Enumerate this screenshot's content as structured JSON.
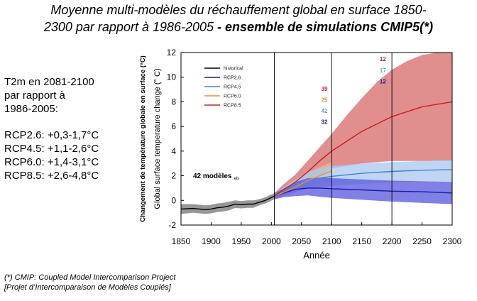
{
  "slide": {
    "title_line1": "Moyenne multi-modèles du réchauffement global en surface 1850-",
    "title_line2_plain": "2300 par rapport à 1986-2005",
    "title_line2_bold": " - ensemble de simulations CMIP5(*)"
  },
  "summary": {
    "heading_lines": [
      "T2m en 2081-2100",
      "par rapport à",
      "1986-2005:"
    ],
    "items": [
      "RCP2.6: +0,3-1,7°C",
      "RCP4.5: +1,1-2,6°C",
      "RCP6.0: +1,4-3,1°C",
      "RCP8.5: +2,6-4,8°C"
    ]
  },
  "footnote": {
    "line1": "(*) CMIP: Coupled Model Intercomparison Project",
    "line2": "[Projet d’Intercomparaison de Modèles Couplés]"
  },
  "chart_data": {
    "type": "line",
    "ylabel_fr": "Changement de température globale en surface (°C)",
    "ylabel_en": "Global surface temperature change (° C)",
    "xlabel": "Année",
    "xlim": [
      1850,
      2300
    ],
    "ylim": [
      -2,
      12
    ],
    "xticks": [
      1850,
      1900,
      1950,
      2000,
      2050,
      2100,
      2150,
      2200,
      2250,
      2300
    ],
    "yticks": [
      -2,
      0,
      2,
      4,
      6,
      8,
      10,
      12
    ],
    "vertical_lines": [
      2005,
      2100,
      2200
    ],
    "grid": false,
    "legend_position": "top-left",
    "models_label_main": "42 modèles",
    "models_label_suffix": "els",
    "series": [
      {
        "name": "historical",
        "color": "#000000",
        "band_color": "#8c8c8c",
        "x": [
          1850,
          1870,
          1880,
          1890,
          1900,
          1910,
          1920,
          1930,
          1940,
          1950,
          1960,
          1970,
          1980,
          1990,
          2005
        ],
        "y": [
          -0.7,
          -0.65,
          -0.7,
          -0.75,
          -0.7,
          -0.6,
          -0.55,
          -0.45,
          -0.3,
          -0.35,
          -0.3,
          -0.3,
          -0.15,
          0.0,
          0.35
        ],
        "y_low": [
          -1.1,
          -1.0,
          -1.05,
          -1.1,
          -1.05,
          -0.95,
          -0.9,
          -0.8,
          -0.6,
          -0.65,
          -0.6,
          -0.6,
          -0.4,
          -0.25,
          0.1
        ],
        "y_high": [
          -0.3,
          -0.3,
          -0.35,
          -0.4,
          -0.35,
          -0.25,
          -0.2,
          -0.1,
          0.0,
          -0.05,
          0.0,
          0.0,
          0.1,
          0.25,
          0.6
        ]
      },
      {
        "name": "RCP2.6",
        "color": "#1a1aa8",
        "band_color": "#5555dd",
        "x": [
          2005,
          2020,
          2040,
          2060,
          2080,
          2100,
          2150,
          2200,
          2250,
          2300
        ],
        "y": [
          0.35,
          0.6,
          0.9,
          1.0,
          1.0,
          0.95,
          0.85,
          0.75,
          0.7,
          0.6
        ],
        "y_low": [
          0.1,
          0.25,
          0.35,
          0.4,
          0.3,
          0.2,
          0.05,
          -0.1,
          -0.2,
          -0.3
        ],
        "y_high": [
          0.6,
          0.95,
          1.5,
          1.8,
          1.85,
          1.8,
          1.7,
          1.6,
          1.55,
          1.5
        ]
      },
      {
        "name": "RCP4.5",
        "color": "#4a7fc8",
        "band_color": "#a8c8f0",
        "x": [
          2005,
          2020,
          2040,
          2060,
          2080,
          2100,
          2150,
          2200,
          2250,
          2300
        ],
        "y": [
          0.35,
          0.7,
          1.2,
          1.6,
          1.8,
          1.95,
          2.2,
          2.35,
          2.45,
          2.5
        ],
        "y_low": [
          0.1,
          0.35,
          0.7,
          0.95,
          1.1,
          1.2,
          1.35,
          1.45,
          1.5,
          1.5
        ],
        "y_high": [
          0.6,
          1.05,
          1.7,
          2.3,
          2.6,
          2.8,
          3.0,
          3.1,
          3.2,
          3.3
        ]
      },
      {
        "name": "RCP6.0",
        "color": "#e89040",
        "band_color": "#f0b880",
        "x": [
          2005,
          2020,
          2040,
          2060,
          2080,
          2100
        ],
        "y": [
          0.35,
          0.65,
          1.1,
          1.6,
          2.0,
          2.4
        ],
        "y_low": [
          0.1,
          0.35,
          0.7,
          1.1,
          1.4,
          1.6
        ],
        "y_high": [
          0.6,
          1.0,
          1.6,
          2.2,
          2.7,
          3.1
        ]
      },
      {
        "name": "RCP8.5",
        "color": "#c42020",
        "band_color": "#d66868",
        "x": [
          2005,
          2020,
          2040,
          2060,
          2080,
          2100,
          2125,
          2150,
          2175,
          2200,
          2225,
          2250,
          2275,
          2300
        ],
        "y": [
          0.35,
          0.85,
          1.5,
          2.3,
          3.2,
          4.0,
          4.8,
          5.6,
          6.2,
          6.8,
          7.2,
          7.6,
          7.8,
          8.0
        ],
        "y_low": [
          0.1,
          0.5,
          1.0,
          1.5,
          2.0,
          2.6,
          2.8,
          3.0,
          3.1,
          3.2,
          3.2,
          3.2,
          3.2,
          3.2
        ],
        "y_high": [
          0.6,
          1.3,
          2.1,
          3.2,
          4.3,
          5.4,
          6.9,
          8.3,
          9.6,
          10.6,
          11.3,
          11.8,
          12.0,
          12.0
        ]
      }
    ],
    "annotations": [
      {
        "text": "39",
        "color": "#c42020",
        "x": 2088,
        "y": 8.9
      },
      {
        "text": "25",
        "color": "#e89040",
        "x": 2088,
        "y": 8.0
      },
      {
        "text": "42",
        "color": "#6fa0e0",
        "x": 2088,
        "y": 7.1
      },
      {
        "text": "32",
        "color": "#1a1aa8",
        "x": 2088,
        "y": 6.2
      },
      {
        "text": "12",
        "color": "#c42020",
        "x": 2185,
        "y": 11.3
      },
      {
        "text": "17",
        "color": "#6fa0e0",
        "x": 2185,
        "y": 10.4
      },
      {
        "text": "12",
        "color": "#1a1aa8",
        "x": 2185,
        "y": 9.5
      }
    ]
  }
}
